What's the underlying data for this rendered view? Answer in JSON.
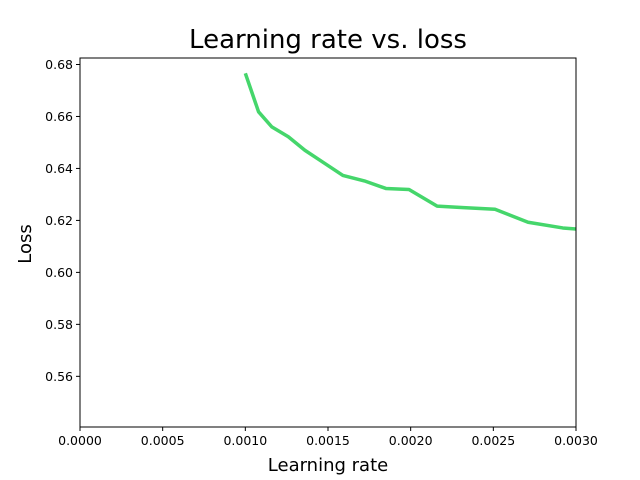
{
  "chart_data": {
    "type": "line",
    "title": "Learning rate vs. loss",
    "xlabel": "Learning rate",
    "ylabel": "Loss",
    "xlim": [
      0.0,
      0.003
    ],
    "ylim": [
      0.5405,
      0.6825
    ],
    "grid": false,
    "x_ticks": [
      "0.0000",
      "0.0005",
      "0.0010",
      "0.0015",
      "0.0020",
      "0.0025",
      "0.0030"
    ],
    "y_ticks": [
      "0.56",
      "0.58",
      "0.60",
      "0.62",
      "0.64",
      "0.66",
      "0.68"
    ],
    "series": [
      {
        "color": "#45d66b",
        "x": [
          0.001,
          0.00108,
          0.00116,
          0.00126,
          0.00136,
          0.00146,
          0.00159,
          0.00172,
          0.00185,
          0.00199,
          0.00216,
          0.00232,
          0.00251,
          0.00271,
          0.00292,
          0.003
        ],
        "y": [
          0.6766,
          0.6618,
          0.656,
          0.6522,
          0.647,
          0.6428,
          0.6373,
          0.6352,
          0.6323,
          0.6319,
          0.6255,
          0.6249,
          0.6243,
          0.6193,
          0.6171,
          0.6167
        ]
      }
    ]
  }
}
